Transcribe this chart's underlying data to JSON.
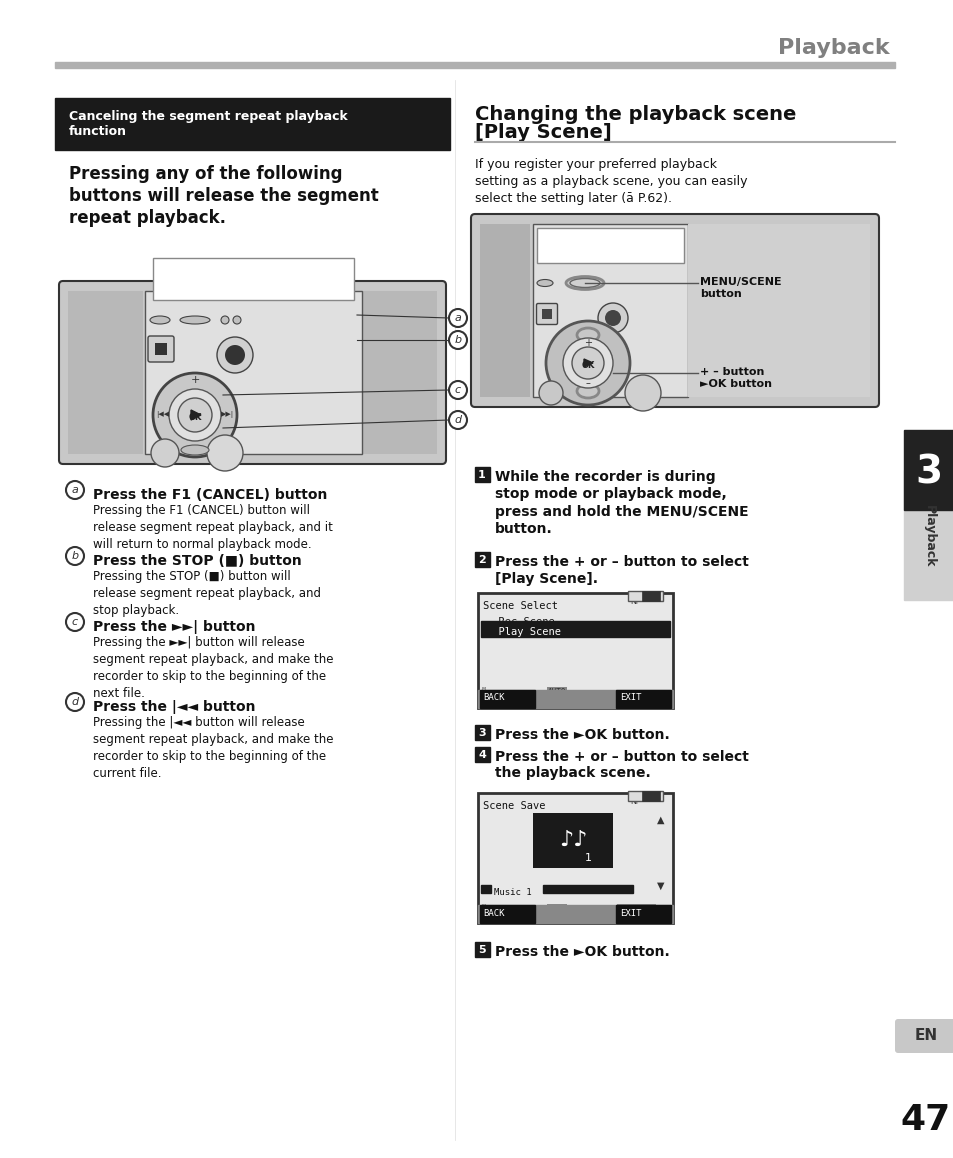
{
  "page_title": "Playback",
  "left_box_title": "Canceling the segment repeat playback\nfunction",
  "left_heading": "Pressing any of the following\nbuttons will release the segment\nrepeat playback.",
  "right_heading1": "Changing the playback scene",
  "right_heading2": "[Play Scene]",
  "right_intro": "If you register your preferred playback\nsetting as a playback scene, you can easily\nselect the setting later (ā P.62).",
  "step1": "While the recorder is during\nstop mode or playback mode,\npress and hold the MENU/SCENE\nbutton.",
  "step2": "Press the + or – button to select\n[Play Scene].",
  "step3": "Press the ►OK button.",
  "step4": "Press the + or – button to select\nthe playback scene.",
  "step5": "Press the ►OK button.",
  "item_a_title": "Press the F1 (CANCEL) button",
  "item_a_body1": "Pressing the ",
  "item_a_body_bold1": "F1",
  "item_a_body2": " (",
  "item_a_body_bold2": "CANCEL",
  "item_a_body3": ") button will\nrelease segment repeat playback, and it\nwill return to normal playback mode.",
  "item_b_title": "Press the STOP (■) button",
  "item_b_body": "Pressing the STOP (■) button will\nrelease segment repeat playback, and\nstop playback.",
  "item_c_title": "Press the ►►| button",
  "item_c_body": "Pressing the ►►| button will release\nsegment repeat playback, and make the\nrecorder to skip to the beginning of the\nnext file.",
  "item_d_title": "Press the |◄◄ button",
  "item_d_body": "Pressing the |◄◄ button will release\nsegment repeat playback, and make the\nrecorder to skip to the beginning of the\ncurrent file.",
  "sidebar_num": "3",
  "sidebar_text": "Playback",
  "page_num": "47",
  "en_label": "EN",
  "bg_color": "#ffffff"
}
